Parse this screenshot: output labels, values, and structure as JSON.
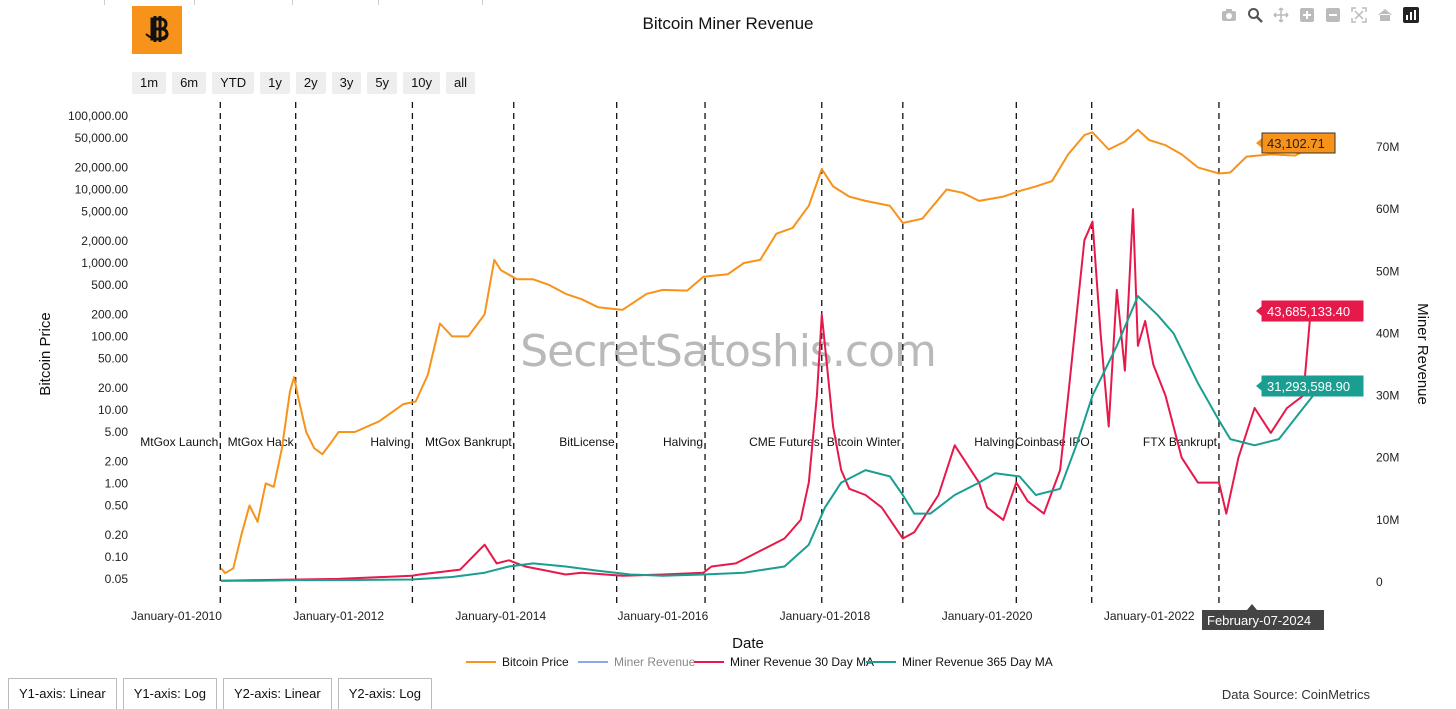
{
  "chart_title": "Bitcoin Miner Revenue",
  "watermark": "SecretSatoshis.com",
  "range_buttons": [
    "1m",
    "6m",
    "YTD",
    "1y",
    "2y",
    "3y",
    "5y",
    "10y",
    "all"
  ],
  "axis_buttons": [
    "Y1-axis: Linear",
    "Y1-axis: Log",
    "Y2-axis: Linear",
    "Y2-axis: Log"
  ],
  "data_source": "Data Source: CoinMetrics",
  "modebar_icons": [
    "camera-icon",
    "zoom-icon",
    "pan-icon",
    "zoom-in-icon",
    "zoom-out-icon",
    "autoscale-icon",
    "reset-axes-icon",
    "plotly-logo-icon"
  ],
  "colors": {
    "price": "#f7931a",
    "revenue": "#8aa9e8",
    "ma30": "#e6194b",
    "ma365": "#1a9e91",
    "hover_dark": "#444444"
  },
  "chart_data": {
    "type": "line",
    "xlabel": "Date",
    "y1label": "Bitcoin Price",
    "y2label": "Miner Revenue",
    "y1_scale": "log",
    "y1_ticks": [
      "100,000.00",
      "50,000.00",
      "20,000.00",
      "10,000.00",
      "5,000.00",
      "2,000.00",
      "1,000.00",
      "500.00",
      "200.00",
      "100.00",
      "50.00",
      "20.00",
      "10.00",
      "5.00",
      "2.00",
      "1.00",
      "0.50",
      "0.20",
      "0.10",
      "0.05"
    ],
    "y1_tick_values": [
      100000,
      50000,
      20000,
      10000,
      5000,
      2000,
      1000,
      500,
      200,
      100,
      50,
      20,
      10,
      5,
      2,
      1,
      0.5,
      0.2,
      0.1,
      0.05
    ],
    "y2_ticks": [
      "70M",
      "60M",
      "50M",
      "40M",
      "30M",
      "20M",
      "10M",
      "0"
    ],
    "y2_tick_values": [
      70000000,
      60000000,
      50000000,
      40000000,
      30000000,
      20000000,
      10000000,
      0
    ],
    "x_ticks": [
      "January-01-2010",
      "January-01-2012",
      "January-01-2014",
      "January-01-2016",
      "January-01-2018",
      "January-01-2020",
      "January-01-2022"
    ],
    "x_tick_years": [
      2010,
      2012,
      2014,
      2016,
      2018,
      2020,
      2022
    ],
    "x_range": [
      2009.5,
      2024.6
    ],
    "legend_position": "bottom-center",
    "events": [
      {
        "label": "MtGox Launch",
        "date": 2010.54
      },
      {
        "label": "MtGox Hack",
        "date": 2011.47
      },
      {
        "label": "Halving",
        "date": 2012.91
      },
      {
        "label": "MtGox Bankrupt",
        "date": 2014.16
      },
      {
        "label": "BitLicense",
        "date": 2015.43
      },
      {
        "label": "Halving",
        "date": 2016.52
      },
      {
        "label": "CME Futures",
        "date": 2017.96
      },
      {
        "label": "Bitcoin Winter",
        "date": 2018.96
      },
      {
        "label": "Halving",
        "date": 2020.36
      },
      {
        "label": "Coinbase IPO",
        "date": 2021.29
      },
      {
        "label": "FTX Bankrupt",
        "date": 2022.86
      }
    ],
    "series": [
      {
        "name": "Bitcoin Price",
        "axis": "y1",
        "x": [
          2010.55,
          2010.6,
          2010.7,
          2010.8,
          2010.9,
          2011.0,
          2011.1,
          2011.2,
          2011.3,
          2011.4,
          2011.45,
          2011.5,
          2011.6,
          2011.7,
          2011.8,
          2011.9,
          2012.0,
          2012.2,
          2012.5,
          2012.8,
          2012.95,
          2013.1,
          2013.25,
          2013.4,
          2013.6,
          2013.8,
          2013.92,
          2014.0,
          2014.2,
          2014.4,
          2014.6,
          2014.8,
          2015.0,
          2015.2,
          2015.5,
          2015.8,
          2016.0,
          2016.3,
          2016.5,
          2016.8,
          2017.0,
          2017.2,
          2017.4,
          2017.6,
          2017.8,
          2017.96,
          2018.1,
          2018.3,
          2018.5,
          2018.8,
          2018.96,
          2019.2,
          2019.5,
          2019.7,
          2019.9,
          2020.2,
          2020.4,
          2020.6,
          2020.8,
          2021.0,
          2021.2,
          2021.3,
          2021.5,
          2021.7,
          2021.86,
          2022.0,
          2022.2,
          2022.4,
          2022.6,
          2022.86,
          2023.0,
          2023.2,
          2023.5,
          2023.8,
          2024.1
        ],
        "y": [
          0.07,
          0.06,
          0.07,
          0.2,
          0.5,
          0.3,
          1.0,
          0.9,
          3,
          18,
          28,
          15,
          5,
          3,
          2.5,
          3.5,
          5,
          5,
          7,
          12,
          13,
          30,
          150,
          100,
          100,
          200,
          1100,
          800,
          600,
          600,
          500,
          380,
          320,
          250,
          230,
          380,
          430,
          420,
          650,
          700,
          1000,
          1100,
          2500,
          3000,
          6000,
          19000,
          11000,
          8000,
          7000,
          6000,
          3500,
          4000,
          10000,
          9000,
          7000,
          8000,
          9500,
          11000,
          13000,
          30000,
          55000,
          60000,
          35000,
          45000,
          65000,
          47000,
          40000,
          30000,
          20000,
          16500,
          17000,
          28000,
          30000,
          29000,
          43102.71
        ]
      },
      {
        "name": "Miner Revenue",
        "axis": "y2",
        "x": [],
        "y": []
      },
      {
        "name": "Miner Revenue 30 Day MA",
        "axis": "y2",
        "x": [
          2010.55,
          2011.0,
          2011.5,
          2012.0,
          2012.9,
          2013.0,
          2013.5,
          2013.8,
          2013.95,
          2014.1,
          2014.3,
          2014.5,
          2014.8,
          2015.0,
          2015.5,
          2016.0,
          2016.5,
          2016.6,
          2016.9,
          2017.2,
          2017.5,
          2017.7,
          2017.8,
          2017.9,
          2017.96,
          2018.0,
          2018.1,
          2018.2,
          2018.3,
          2018.5,
          2018.7,
          2018.96,
          2019.1,
          2019.2,
          2019.4,
          2019.6,
          2019.7,
          2019.9,
          2020.0,
          2020.2,
          2020.36,
          2020.5,
          2020.7,
          2020.9,
          2021.0,
          2021.2,
          2021.3,
          2021.4,
          2021.5,
          2021.6,
          2021.7,
          2021.8,
          2021.86,
          2021.95,
          2022.05,
          2022.2,
          2022.4,
          2022.6,
          2022.86,
          2022.95,
          2023.1,
          2023.3,
          2023.5,
          2023.7,
          2023.9,
          2024.0,
          2024.1
        ],
        "y": [
          0.2,
          0.3,
          0.4,
          0.5,
          1,
          1.2,
          2,
          6,
          3,
          3.5,
          2.5,
          2,
          1.2,
          1.5,
          1.0,
          1.2,
          1.5,
          2.5,
          3,
          5,
          7,
          10,
          16,
          30,
          43,
          38,
          25,
          18,
          15,
          14,
          12,
          7,
          8,
          10,
          14,
          22,
          20,
          16,
          12,
          10,
          16,
          13,
          11,
          18,
          30,
          55,
          58,
          40,
          25,
          47,
          34,
          60,
          38,
          42,
          35,
          30,
          20,
          16,
          16,
          11,
          20,
          28,
          24,
          28,
          30,
          45,
          43.685
        ]
      },
      {
        "name": "Miner Revenue 365 Day MA",
        "axis": "y2",
        "x": [
          2010.55,
          2011.0,
          2011.5,
          2012.0,
          2012.9,
          2013.4,
          2013.8,
          2014.1,
          2014.4,
          2014.8,
          2015.2,
          2015.6,
          2016.0,
          2016.5,
          2017.0,
          2017.5,
          2017.8,
          2018.0,
          2018.2,
          2018.5,
          2018.8,
          2018.96,
          2019.1,
          2019.3,
          2019.6,
          2019.9,
          2020.1,
          2020.4,
          2020.6,
          2020.9,
          2021.1,
          2021.3,
          2021.6,
          2021.86,
          2022.1,
          2022.3,
          2022.6,
          2022.86,
          2023.0,
          2023.3,
          2023.6,
          2023.9,
          2024.1
        ],
        "y": [
          0.2,
          0.2,
          0.3,
          0.3,
          0.4,
          0.8,
          1.5,
          2.5,
          3,
          2.5,
          1.8,
          1.2,
          1.0,
          1.2,
          1.5,
          2.5,
          6,
          12,
          16,
          18,
          17,
          14,
          11,
          11,
          14,
          16,
          17.5,
          17,
          14,
          15,
          22,
          30,
          38,
          46,
          43,
          40,
          32,
          26,
          23,
          22,
          23,
          28,
          31.293
        ]
      }
    ],
    "last_value_labels": {
      "price": "43,102.71",
      "ma30": "43,685,133.40",
      "ma365": "31,293,598.90",
      "date": "February-07-2024"
    }
  }
}
